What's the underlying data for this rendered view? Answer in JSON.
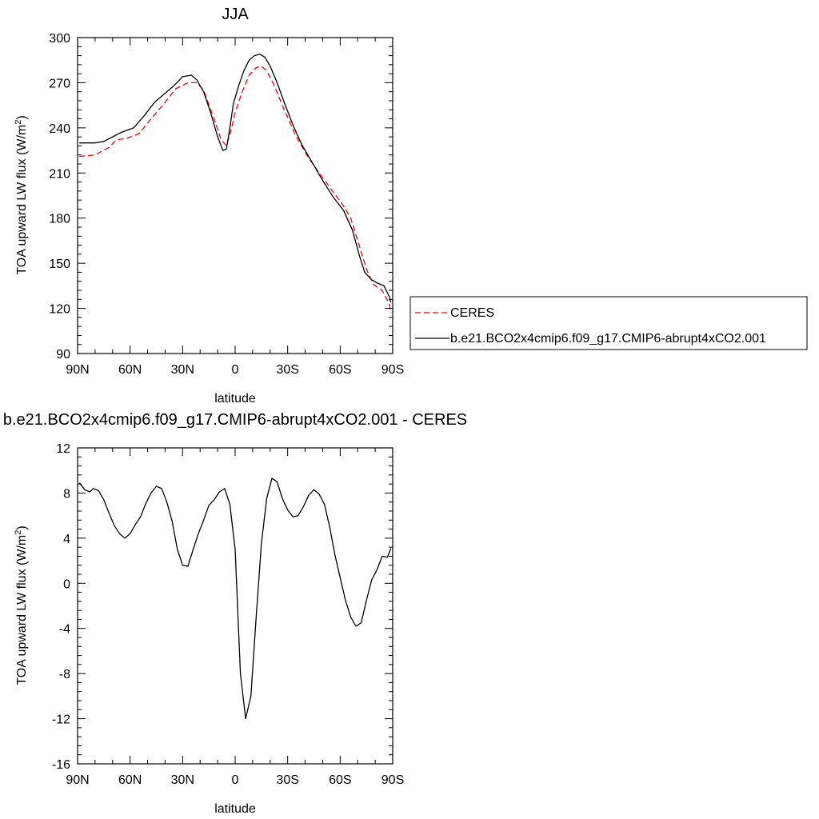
{
  "chart_data": [
    {
      "type": "line",
      "title": "JJA",
      "xlabel": "latitude",
      "ylabel": "TOA upward LW flux (W/m",
      "ylabel_sup": "2",
      "ylabel_end": ")",
      "xlim": [
        90,
        -90
      ],
      "ylim": [
        90,
        300
      ],
      "x_ticks": [
        90,
        60,
        30,
        0,
        -30,
        -60,
        -90
      ],
      "x_tick_labels": [
        "90N",
        "60N",
        "30N",
        "0",
        "30S",
        "60S",
        "90S"
      ],
      "y_ticks": [
        90,
        120,
        150,
        180,
        210,
        240,
        270,
        300
      ],
      "y_tick_labels": [
        "90",
        "120",
        "150",
        "180",
        "210",
        "240",
        "270",
        "300"
      ],
      "legend_position": "right",
      "series": [
        {
          "name": "CERES",
          "color": "#ff0000",
          "dash": "dashed",
          "x": [
            89,
            80,
            72,
            68,
            62,
            55,
            48,
            40,
            34,
            27,
            22,
            18,
            12,
            8,
            5,
            2,
            0,
            -4,
            -8,
            -12,
            -15,
            -18,
            -22,
            -28,
            -35,
            -42,
            -48,
            -55,
            -62,
            -66,
            -70,
            -75,
            -79,
            -84,
            -88,
            -89
          ],
          "y": [
            221,
            222,
            227,
            232,
            233,
            236,
            246,
            257,
            266,
            270,
            270,
            265,
            246,
            232,
            228,
            240,
            250,
            264,
            275,
            280,
            281,
            278,
            269,
            252,
            234,
            220,
            210,
            199,
            188,
            180,
            165,
            146,
            136,
            132,
            123,
            117
          ]
        },
        {
          "name": "b.e21.BCO2x4cmip6.f09_g17.CMIP6-abrupt4xCO2.001",
          "color": "#000000",
          "dash": "solid",
          "x": [
            89,
            80,
            75,
            70,
            65,
            58,
            52,
            46,
            40,
            35,
            30,
            25,
            22,
            18,
            14,
            10,
            7,
            5,
            3,
            1,
            -2,
            -5,
            -8,
            -11,
            -14,
            -17,
            -20,
            -24,
            -28,
            -33,
            -38,
            -44,
            -50,
            -56,
            -62,
            -67,
            -71,
            -74,
            -78,
            -81,
            -85,
            -88,
            -89
          ],
          "y": [
            230,
            230,
            231,
            234,
            237,
            240,
            248,
            257,
            263,
            268,
            274,
            275,
            272,
            264,
            250,
            234,
            225,
            226,
            240,
            256,
            268,
            278,
            285,
            288,
            289,
            287,
            281,
            270,
            257,
            242,
            229,
            217,
            205,
            194,
            185,
            172,
            155,
            144,
            139,
            137,
            135,
            128,
            124
          ]
        }
      ]
    },
    {
      "type": "line",
      "title": "b.e21.BCO2x4cmip6.f09_g17.CMIP6-abrupt4xCO2.001 - CERES",
      "xlabel": "latitude",
      "ylabel": "TOA upward LW flux (W/m",
      "ylabel_sup": "2",
      "ylabel_end": ")",
      "xlim": [
        90,
        -90
      ],
      "ylim": [
        -16,
        12
      ],
      "x_ticks": [
        90,
        60,
        30,
        0,
        -30,
        -60,
        -90
      ],
      "x_tick_labels": [
        "90N",
        "60N",
        "30N",
        "0",
        "30S",
        "60S",
        "90S"
      ],
      "y_ticks": [
        -16,
        -12,
        -8,
        -4,
        0,
        4,
        8,
        12
      ],
      "y_tick_labels": [
        "-16",
        "-12",
        "-8",
        "-4",
        "0",
        "4",
        "8",
        "12"
      ],
      "series": [
        {
          "color": "#000000",
          "dash": "solid",
          "x": [
            89,
            86,
            83,
            81,
            78,
            75,
            72,
            69,
            66,
            63,
            60,
            57,
            54,
            51,
            48,
            45,
            42,
            39,
            36,
            33,
            30,
            27,
            24,
            21,
            18,
            15,
            12,
            9,
            6,
            3,
            0,
            -3,
            -6,
            -9,
            -12,
            -15,
            -18,
            -21,
            -24,
            -27,
            -30,
            -33,
            -36,
            -39,
            -42,
            -45,
            -48,
            -51,
            -54,
            -57,
            -60,
            -63,
            -66,
            -69,
            -72,
            -75,
            -78,
            -81,
            -84,
            -87,
            -89
          ],
          "y": [
            8.9,
            8.3,
            8.1,
            8.4,
            8.2,
            7.4,
            6.2,
            5.1,
            4.4,
            4.0,
            4.4,
            5.2,
            5.9,
            7.1,
            8.0,
            8.6,
            8.4,
            7.2,
            5.5,
            3.0,
            1.6,
            1.5,
            3.0,
            4.4,
            5.6,
            6.9,
            7.4,
            8.1,
            8.4,
            7.0,
            3.0,
            -8.0,
            -12.0,
            -10.0,
            -3.0,
            3.5,
            7.5,
            9.3,
            9.0,
            7.5,
            6.5,
            5.9,
            6.0,
            6.8,
            7.8,
            8.3,
            7.9,
            7.0,
            5.0,
            2.5,
            0.5,
            -1.5,
            -3.0,
            -3.8,
            -3.5,
            -1.5,
            0.3,
            1.2,
            2.4,
            2.3,
            3.1
          ]
        }
      ]
    }
  ]
}
